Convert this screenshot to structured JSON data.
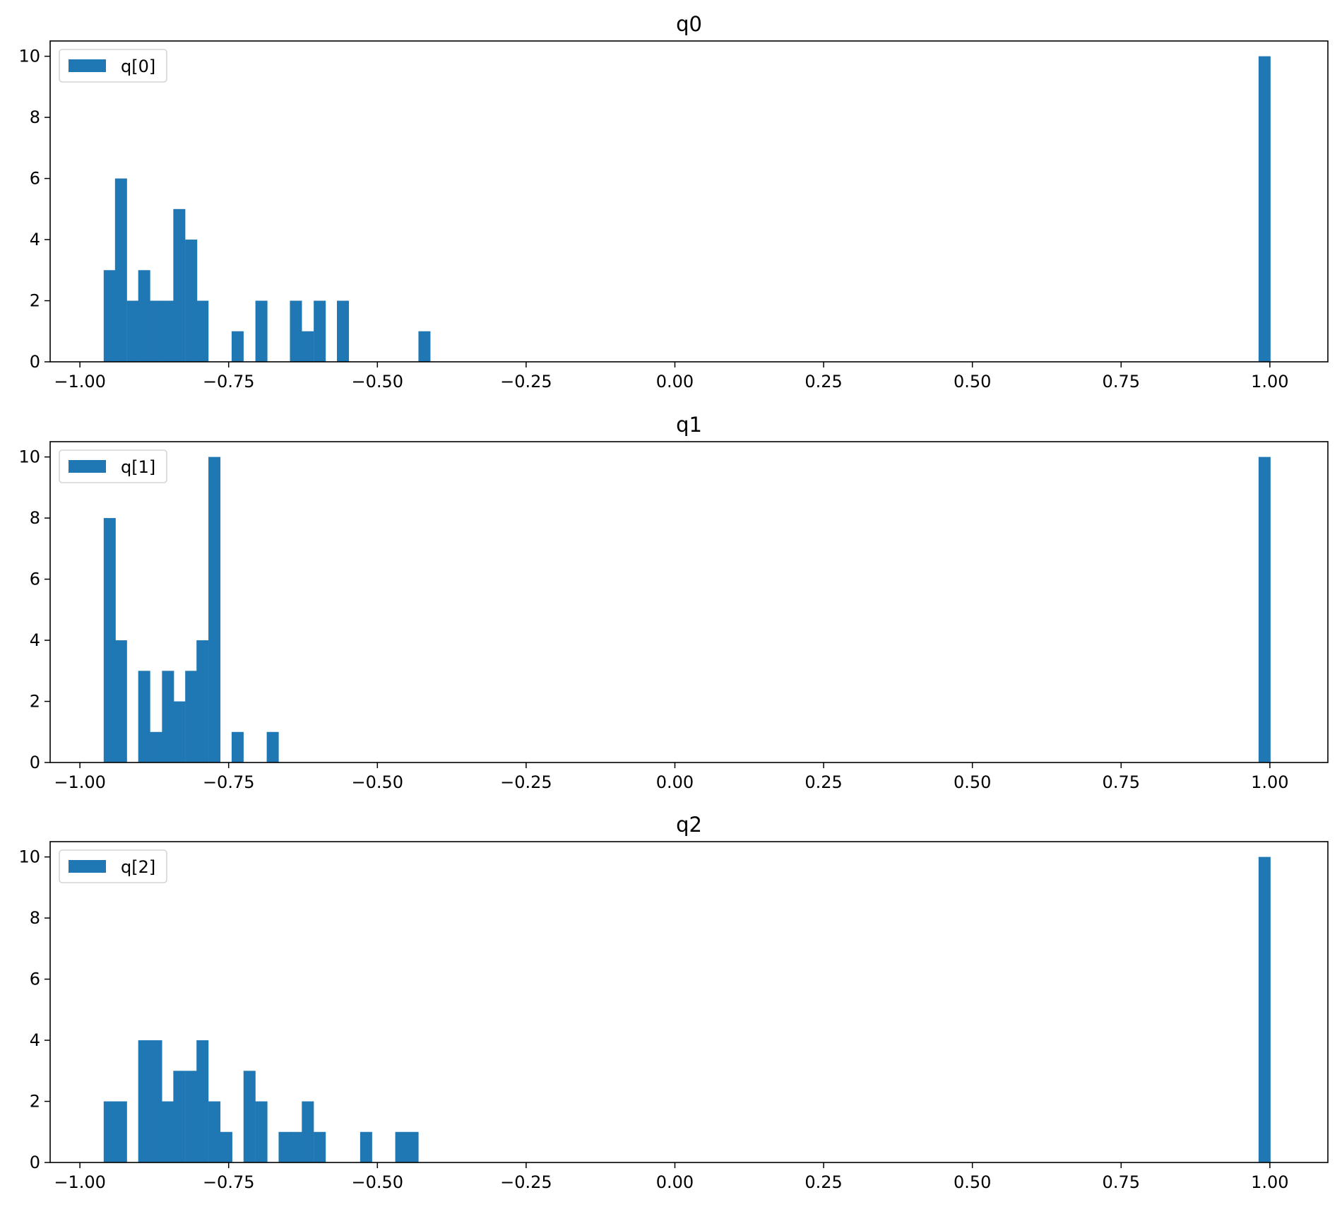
{
  "colors": {
    "bar": "#1f77b4",
    "axes": "#000000",
    "background": "#ffffff",
    "legend_border": "#cccccc"
  },
  "chart_data": [
    {
      "type": "bar",
      "title": "q0",
      "xlabel": "",
      "ylabel": "",
      "xlim": [
        -1.05,
        1.0975
      ],
      "ylim": [
        0,
        10.5
      ],
      "xticks": [
        -1.0,
        -0.75,
        -0.5,
        -0.25,
        0.0,
        0.25,
        0.5,
        0.75,
        1.0
      ],
      "xtick_labels": [
        "−1.00",
        "−0.75",
        "−0.50",
        "−0.25",
        "0.00",
        "0.25",
        "0.50",
        "0.75",
        "1.00"
      ],
      "yticks": [
        0,
        2,
        4,
        6,
        8,
        10
      ],
      "ytick_labels": [
        "0",
        "2",
        "4",
        "6",
        "8",
        "10"
      ],
      "legend": {
        "label": "q[0]",
        "position": "top-left"
      },
      "grid": false,
      "bin_width": 0.0196,
      "bins": [
        {
          "x": -0.96,
          "count": 3
        },
        {
          "x": -0.941,
          "count": 6
        },
        {
          "x": -0.921,
          "count": 2
        },
        {
          "x": -0.902,
          "count": 3
        },
        {
          "x": -0.882,
          "count": 2
        },
        {
          "x": -0.862,
          "count": 2
        },
        {
          "x": -0.843,
          "count": 5
        },
        {
          "x": -0.823,
          "count": 4
        },
        {
          "x": -0.804,
          "count": 2
        },
        {
          "x": -0.745,
          "count": 1
        },
        {
          "x": -0.705,
          "count": 2
        },
        {
          "x": -0.647,
          "count": 2
        },
        {
          "x": -0.627,
          "count": 1
        },
        {
          "x": -0.607,
          "count": 2
        },
        {
          "x": -0.568,
          "count": 2
        },
        {
          "x": -0.431,
          "count": 1
        },
        {
          "x": 0.981,
          "count": 10
        }
      ]
    },
    {
      "type": "bar",
      "title": "q1",
      "xlabel": "",
      "ylabel": "",
      "xlim": [
        -1.05,
        1.0975
      ],
      "ylim": [
        0,
        10.5
      ],
      "xticks": [
        -1.0,
        -0.75,
        -0.5,
        -0.25,
        0.0,
        0.25,
        0.5,
        0.75,
        1.0
      ],
      "xtick_labels": [
        "−1.00",
        "−0.75",
        "−0.50",
        "−0.25",
        "0.00",
        "0.25",
        "0.50",
        "0.75",
        "1.00"
      ],
      "yticks": [
        0,
        2,
        4,
        6,
        8,
        10
      ],
      "ytick_labels": [
        "0",
        "2",
        "4",
        "6",
        "8",
        "10"
      ],
      "legend": {
        "label": "q[1]",
        "position": "top-left"
      },
      "grid": false,
      "bin_width": 0.0196,
      "bins": [
        {
          "x": -0.96,
          "count": 8
        },
        {
          "x": -0.941,
          "count": 4
        },
        {
          "x": -0.902,
          "count": 3
        },
        {
          "x": -0.882,
          "count": 1
        },
        {
          "x": -0.862,
          "count": 3
        },
        {
          "x": -0.843,
          "count": 2
        },
        {
          "x": -0.823,
          "count": 3
        },
        {
          "x": -0.804,
          "count": 4
        },
        {
          "x": -0.784,
          "count": 10
        },
        {
          "x": -0.745,
          "count": 1
        },
        {
          "x": -0.686,
          "count": 1
        },
        {
          "x": 0.981,
          "count": 10
        }
      ]
    },
    {
      "type": "bar",
      "title": "q2",
      "xlabel": "",
      "ylabel": "",
      "xlim": [
        -1.05,
        1.0975
      ],
      "ylim": [
        0,
        10.5
      ],
      "xticks": [
        -1.0,
        -0.75,
        -0.5,
        -0.25,
        0.0,
        0.25,
        0.5,
        0.75,
        1.0
      ],
      "xtick_labels": [
        "−1.00",
        "−0.75",
        "−0.50",
        "−0.25",
        "0.00",
        "0.25",
        "0.50",
        "0.75",
        "1.00"
      ],
      "yticks": [
        0,
        2,
        4,
        6,
        8,
        10
      ],
      "ytick_labels": [
        "0",
        "2",
        "4",
        "6",
        "8",
        "10"
      ],
      "legend": {
        "label": "q[2]",
        "position": "top-left"
      },
      "grid": false,
      "bin_width": 0.0196,
      "bins": [
        {
          "x": -0.96,
          "count": 2
        },
        {
          "x": -0.941,
          "count": 2
        },
        {
          "x": -0.902,
          "count": 4
        },
        {
          "x": -0.882,
          "count": 4
        },
        {
          "x": -0.862,
          "count": 2
        },
        {
          "x": -0.843,
          "count": 3
        },
        {
          "x": -0.823,
          "count": 3
        },
        {
          "x": -0.804,
          "count": 4
        },
        {
          "x": -0.784,
          "count": 2
        },
        {
          "x": -0.764,
          "count": 1
        },
        {
          "x": -0.725,
          "count": 3
        },
        {
          "x": -0.705,
          "count": 2
        },
        {
          "x": -0.666,
          "count": 1
        },
        {
          "x": -0.647,
          "count": 1
        },
        {
          "x": -0.627,
          "count": 2
        },
        {
          "x": -0.607,
          "count": 1
        },
        {
          "x": -0.529,
          "count": 1
        },
        {
          "x": -0.47,
          "count": 1
        },
        {
          "x": -0.451,
          "count": 1
        },
        {
          "x": 0.981,
          "count": 10
        }
      ]
    }
  ]
}
